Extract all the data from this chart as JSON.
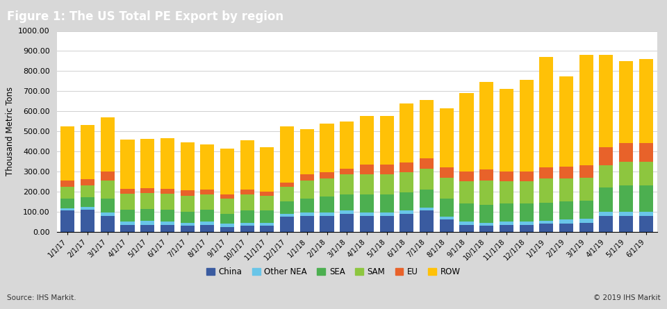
{
  "title": "Figure 1: The US Total PE Export by region",
  "ylabel": "Thousand Metric Tons",
  "source_left": "Source: IHS Markit.",
  "source_right": "© 2019 IHS Markit",
  "categories": [
    "1/1/17",
    "2/1/17",
    "3/1/17",
    "4/1/17",
    "5/1/17",
    "6/1/17",
    "7/1/17",
    "8/1/17",
    "9/1/17",
    "10/1/17",
    "11/1/17",
    "12/1/17",
    "1/1/18",
    "2/1/18",
    "3/1/18",
    "4/1/18",
    "5/1/18",
    "6/1/18",
    "7/1/18",
    "8/1/18",
    "9/1/18",
    "10/1/18",
    "11/1/18",
    "12/1/18",
    "1/1/19",
    "2/1/19",
    "3/1/19",
    "4/1/19",
    "5/1/19",
    "6/1/19"
  ],
  "series": {
    "China": [
      105,
      110,
      80,
      35,
      35,
      35,
      30,
      35,
      25,
      30,
      30,
      75,
      80,
      80,
      90,
      80,
      80,
      90,
      105,
      60,
      35,
      30,
      35,
      35,
      40,
      40,
      45,
      80,
      80,
      80
    ],
    "Other NEA": [
      10,
      12,
      15,
      15,
      18,
      15,
      15,
      15,
      15,
      15,
      15,
      15,
      15,
      15,
      15,
      15,
      15,
      15,
      15,
      15,
      15,
      15,
      15,
      15,
      15,
      20,
      20,
      20,
      20,
      20
    ],
    "SEA": [
      50,
      50,
      70,
      60,
      60,
      60,
      55,
      60,
      50,
      60,
      60,
      60,
      70,
      80,
      80,
      90,
      90,
      90,
      90,
      90,
      90,
      90,
      90,
      90,
      90,
      90,
      90,
      120,
      130,
      130
    ],
    "SAM": [
      60,
      60,
      90,
      80,
      80,
      80,
      80,
      75,
      75,
      80,
      75,
      75,
      90,
      90,
      100,
      100,
      100,
      100,
      105,
      105,
      110,
      120,
      110,
      110,
      120,
      115,
      115,
      110,
      120,
      120
    ],
    "EU": [
      30,
      30,
      45,
      25,
      25,
      25,
      25,
      25,
      20,
      25,
      20,
      20,
      30,
      30,
      30,
      50,
      50,
      50,
      50,
      50,
      50,
      55,
      50,
      50,
      55,
      60,
      60,
      90,
      90,
      90
    ],
    "ROW": [
      270,
      270,
      270,
      245,
      245,
      250,
      240,
      225,
      230,
      245,
      220,
      280,
      225,
      245,
      235,
      240,
      240,
      295,
      290,
      295,
      390,
      435,
      410,
      455,
      550,
      450,
      550,
      460,
      410,
      420
    ]
  },
  "colors": {
    "China": "#3A5BA0",
    "Other NEA": "#69C5E8",
    "SEA": "#4CAF50",
    "SAM": "#8DC63F",
    "EU": "#E8622A",
    "ROW": "#FFC107"
  },
  "ylim": [
    0,
    1000
  ],
  "yticks": [
    0,
    100,
    200,
    300,
    400,
    500,
    600,
    700,
    800,
    900,
    1000
  ],
  "title_bg_color": "#808080",
  "title_text_color": "#ffffff",
  "plot_bg_color": "#ffffff",
  "grid_color": "#d0d0d0",
  "footer_bg_color": "#d8d8d8",
  "outer_bg_color": "#d8d8d8"
}
